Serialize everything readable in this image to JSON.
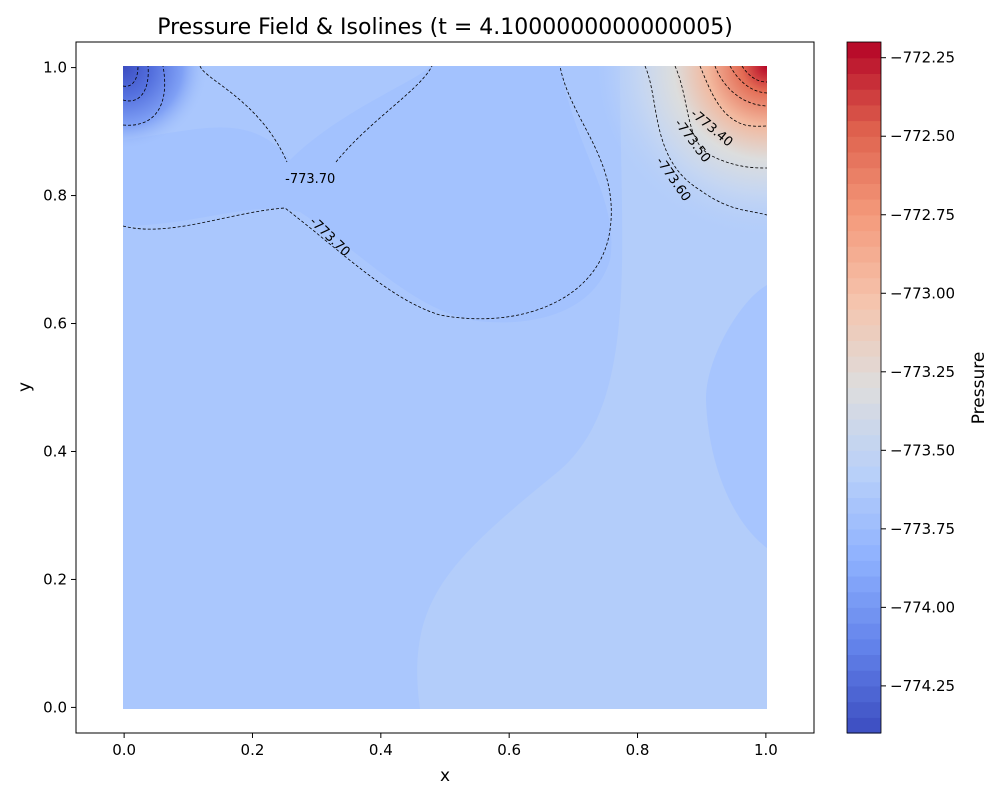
{
  "chart_data": {
    "type": "heatmap",
    "title": "Pressure Field & Isolines (t = 4.1000000000000005)",
    "xlabel": "x",
    "ylabel": "y",
    "xlim": [
      -0.075,
      1.075
    ],
    "ylim": [
      -0.04,
      1.04
    ],
    "xticks": [
      0.0,
      0.2,
      0.4,
      0.6,
      0.8,
      1.0
    ],
    "xtick_labels": [
      "0.0",
      "0.2",
      "0.4",
      "0.6",
      "0.8",
      "1.0"
    ],
    "yticks": [
      0.0,
      0.2,
      0.4,
      0.6,
      0.8,
      1.0
    ],
    "ytick_labels": [
      "0.0",
      "0.2",
      "0.4",
      "0.6",
      "0.8",
      "1.0"
    ],
    "grid": false,
    "colormap": "coolwarm",
    "colorbar": {
      "label": "Pressure",
      "range": [
        -774.4,
        -772.2
      ],
      "ticks": [
        -774.25,
        -774.0,
        -773.75,
        -773.5,
        -773.25,
        -773.0,
        -772.75,
        -772.5,
        -772.25
      ],
      "tick_labels": [
        "−774.25",
        "−774.00",
        "−773.75",
        "−773.50",
        "−773.25",
        "−773.00",
        "−772.75",
        "−772.50",
        "−772.25"
      ],
      "n_bands": 44
    },
    "field_regions": [
      {
        "region": "background",
        "value": -773.72
      },
      {
        "region": "lower-right",
        "value": -773.62
      },
      {
        "region": "upper-middle",
        "value": -773.77
      },
      {
        "region": "right-middle",
        "value": -773.7
      },
      {
        "region": "top-left corner",
        "value": -774.35
      },
      {
        "region": "top-right corner",
        "value": -772.3
      }
    ],
    "contour_labels": [
      {
        "text": "-773.70",
        "x": 0.29,
        "y": 0.825,
        "rotation": 0
      },
      {
        "text": "-773.70",
        "x": 0.32,
        "y": 0.735,
        "rotation": 44
      },
      {
        "text": "-773.40",
        "x": 0.915,
        "y": 0.905,
        "rotation": 40
      },
      {
        "text": "-773.50",
        "x": 0.885,
        "y": 0.885,
        "rotation": 53
      },
      {
        "text": "-773.60",
        "x": 0.855,
        "y": 0.825,
        "rotation": 55
      }
    ]
  }
}
